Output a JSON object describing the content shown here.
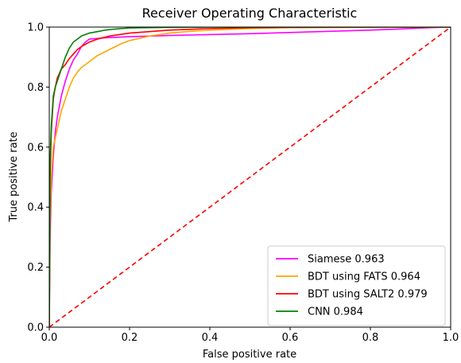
{
  "chart_data": {
    "type": "line",
    "title": "Receiver Operating Characteristic",
    "xlabel": "False positive rate",
    "ylabel": "True positive rate",
    "xlim": [
      0.0,
      1.0
    ],
    "ylim": [
      0.0,
      1.0
    ],
    "xticks": [
      "0.0",
      "0.2",
      "0.4",
      "0.6",
      "0.8",
      "1.0"
    ],
    "yticks": [
      "0.0",
      "0.2",
      "0.4",
      "0.6",
      "0.8",
      "1.0"
    ],
    "grid": false,
    "legend_position": "bottom-right",
    "series": [
      {
        "name": "Siamese 0.963",
        "color": "#ff00ff",
        "x": [
          0.0,
          0.002,
          0.005,
          0.01,
          0.015,
          0.02,
          0.03,
          0.04,
          0.05,
          0.06,
          0.07,
          0.08,
          0.09,
          0.1,
          0.12,
          0.15,
          0.2,
          0.25,
          0.3,
          0.4,
          0.5,
          0.6,
          0.7,
          0.8,
          0.9,
          0.95,
          1.0
        ],
        "y": [
          0.0,
          0.3,
          0.45,
          0.57,
          0.65,
          0.7,
          0.77,
          0.82,
          0.86,
          0.89,
          0.91,
          0.935,
          0.95,
          0.96,
          0.962,
          0.965,
          0.968,
          0.97,
          0.972,
          0.975,
          0.978,
          0.982,
          0.986,
          0.99,
          0.995,
          0.998,
          1.0
        ]
      },
      {
        "name": "BDT using FATS 0.964",
        "color": "#ffa500",
        "x": [
          0.0,
          0.002,
          0.005,
          0.01,
          0.02,
          0.03,
          0.04,
          0.05,
          0.06,
          0.07,
          0.08,
          0.1,
          0.12,
          0.15,
          0.18,
          0.2,
          0.25,
          0.3,
          0.35,
          0.4,
          0.5,
          0.6,
          0.8,
          1.0
        ],
        "y": [
          0.0,
          0.35,
          0.5,
          0.6,
          0.66,
          0.72,
          0.76,
          0.8,
          0.83,
          0.85,
          0.865,
          0.885,
          0.905,
          0.925,
          0.945,
          0.955,
          0.97,
          0.98,
          0.986,
          0.99,
          0.995,
          0.998,
          0.999,
          1.0
        ]
      },
      {
        "name": "BDT using SALT2 0.979",
        "color": "#ff0000",
        "x": [
          0.0,
          0.002,
          0.005,
          0.01,
          0.015,
          0.02,
          0.03,
          0.04,
          0.05,
          0.06,
          0.07,
          0.08,
          0.1,
          0.12,
          0.15,
          0.2,
          0.25,
          0.3,
          0.4,
          0.5,
          0.6,
          0.8,
          1.0
        ],
        "y": [
          0.0,
          0.5,
          0.65,
          0.76,
          0.8,
          0.83,
          0.86,
          0.875,
          0.895,
          0.91,
          0.925,
          0.935,
          0.95,
          0.96,
          0.97,
          0.98,
          0.985,
          0.99,
          0.995,
          0.998,
          0.999,
          1.0,
          1.0
        ]
      },
      {
        "name": "CNN 0.984",
        "color": "#008000",
        "x": [
          0.0,
          0.002,
          0.005,
          0.01,
          0.015,
          0.02,
          0.03,
          0.04,
          0.05,
          0.06,
          0.07,
          0.08,
          0.09,
          0.1,
          0.12,
          0.14,
          0.16,
          0.18,
          0.2,
          0.25,
          0.3,
          0.4,
          0.6,
          1.0
        ],
        "y": [
          0.0,
          0.55,
          0.67,
          0.77,
          0.8,
          0.82,
          0.86,
          0.9,
          0.93,
          0.95,
          0.96,
          0.97,
          0.975,
          0.98,
          0.985,
          0.99,
          0.993,
          0.995,
          0.997,
          0.998,
          0.999,
          1.0,
          1.0,
          1.0
        ]
      }
    ],
    "reference_line": {
      "x": [
        0.0,
        1.0
      ],
      "y": [
        0.0,
        1.0
      ],
      "color": "#ff0000",
      "style": "dashed"
    }
  }
}
